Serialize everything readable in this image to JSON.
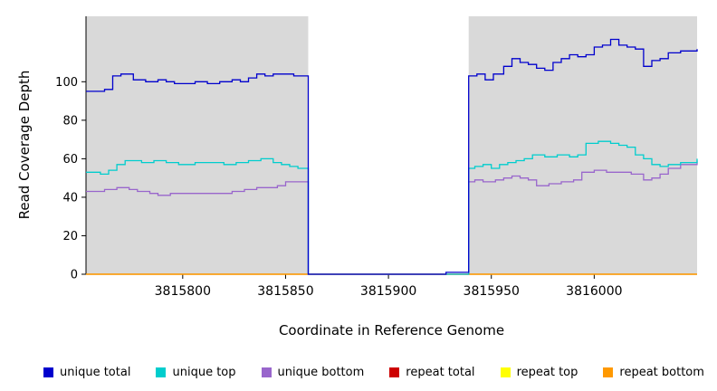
{
  "chart_data": {
    "type": "line",
    "step": true,
    "title": "",
    "xlabel": "Coordinate in Reference Genome",
    "ylabel": "Read Coverage Depth",
    "xlim": [
      3815753,
      3816050
    ],
    "ylim": [
      0,
      134
    ],
    "xticks": [
      3815800,
      3815850,
      3815900,
      3815950,
      3816000
    ],
    "yticks": [
      0,
      20,
      40,
      60,
      80,
      100
    ],
    "grid": false,
    "legend_position": "bottom",
    "panel_bg": "#d9d9d9",
    "gap_region": {
      "start": 3815861,
      "end": 3815939,
      "fill": "#ffffff"
    },
    "series": [
      {
        "key": "repeat-total",
        "name": "repeat total",
        "color": "#cd0000",
        "points": [
          [
            3815753,
            0
          ],
          [
            3816050,
            0
          ]
        ]
      },
      {
        "key": "repeat-top",
        "name": "repeat top",
        "color": "#ffff00",
        "points": [
          [
            3815753,
            0
          ],
          [
            3816050,
            0
          ]
        ]
      },
      {
        "key": "repeat-bottom",
        "name": "repeat bottom",
        "color": "#ff9900",
        "points": [
          [
            3815753,
            0
          ],
          [
            3816050,
            0
          ]
        ]
      },
      {
        "key": "unique-bottom",
        "name": "unique bottom",
        "color": "#9966cc",
        "points": [
          [
            3815753,
            43
          ],
          [
            3815762,
            44
          ],
          [
            3815768,
            45
          ],
          [
            3815774,
            44
          ],
          [
            3815778,
            43
          ],
          [
            3815784,
            42
          ],
          [
            3815788,
            41
          ],
          [
            3815794,
            42
          ],
          [
            3815802,
            42
          ],
          [
            3815810,
            42
          ],
          [
            3815818,
            42
          ],
          [
            3815824,
            43
          ],
          [
            3815830,
            44
          ],
          [
            3815836,
            45
          ],
          [
            3815842,
            45
          ],
          [
            3815846,
            46
          ],
          [
            3815850,
            48
          ],
          [
            3815856,
            48
          ],
          [
            3815861,
            0
          ],
          [
            3815939,
            48
          ],
          [
            3815942,
            49
          ],
          [
            3815946,
            48
          ],
          [
            3815952,
            49
          ],
          [
            3815956,
            50
          ],
          [
            3815960,
            51
          ],
          [
            3815964,
            50
          ],
          [
            3815968,
            49
          ],
          [
            3815972,
            46
          ],
          [
            3815978,
            47
          ],
          [
            3815984,
            48
          ],
          [
            3815990,
            49
          ],
          [
            3815994,
            53
          ],
          [
            3816000,
            54
          ],
          [
            3816006,
            53
          ],
          [
            3816012,
            53
          ],
          [
            3816018,
            52
          ],
          [
            3816024,
            49
          ],
          [
            3816028,
            50
          ],
          [
            3816032,
            52
          ],
          [
            3816036,
            55
          ],
          [
            3816042,
            57
          ],
          [
            3816050,
            59
          ]
        ]
      },
      {
        "key": "unique-top",
        "name": "unique top",
        "color": "#00cdcd",
        "points": [
          [
            3815753,
            53
          ],
          [
            3815760,
            52
          ],
          [
            3815764,
            54
          ],
          [
            3815768,
            57
          ],
          [
            3815772,
            59
          ],
          [
            3815780,
            58
          ],
          [
            3815786,
            59
          ],
          [
            3815792,
            58
          ],
          [
            3815798,
            57
          ],
          [
            3815806,
            58
          ],
          [
            3815814,
            58
          ],
          [
            3815820,
            57
          ],
          [
            3815826,
            58
          ],
          [
            3815832,
            59
          ],
          [
            3815838,
            60
          ],
          [
            3815844,
            58
          ],
          [
            3815848,
            57
          ],
          [
            3815852,
            56
          ],
          [
            3815856,
            55
          ],
          [
            3815861,
            0
          ],
          [
            3815939,
            55
          ],
          [
            3815942,
            56
          ],
          [
            3815946,
            57
          ],
          [
            3815950,
            55
          ],
          [
            3815954,
            57
          ],
          [
            3815958,
            58
          ],
          [
            3815962,
            59
          ],
          [
            3815966,
            60
          ],
          [
            3815970,
            62
          ],
          [
            3815976,
            61
          ],
          [
            3815982,
            62
          ],
          [
            3815988,
            61
          ],
          [
            3815992,
            62
          ],
          [
            3815996,
            68
          ],
          [
            3816002,
            69
          ],
          [
            3816008,
            68
          ],
          [
            3816012,
            67
          ],
          [
            3816016,
            66
          ],
          [
            3816020,
            62
          ],
          [
            3816024,
            60
          ],
          [
            3816028,
            57
          ],
          [
            3816032,
            56
          ],
          [
            3816036,
            57
          ],
          [
            3816042,
            58
          ],
          [
            3816050,
            60
          ]
        ]
      },
      {
        "key": "unique-total",
        "name": "unique total",
        "color": "#0000cd",
        "points": [
          [
            3815753,
            95
          ],
          [
            3815762,
            96
          ],
          [
            3815766,
            103
          ],
          [
            3815770,
            104
          ],
          [
            3815776,
            101
          ],
          [
            3815782,
            100
          ],
          [
            3815788,
            101
          ],
          [
            3815792,
            100
          ],
          [
            3815796,
            99
          ],
          [
            3815806,
            100
          ],
          [
            3815812,
            99
          ],
          [
            3815818,
            100
          ],
          [
            3815824,
            101
          ],
          [
            3815828,
            100
          ],
          [
            3815832,
            102
          ],
          [
            3815836,
            104
          ],
          [
            3815840,
            103
          ],
          [
            3815844,
            104
          ],
          [
            3815850,
            104
          ],
          [
            3815854,
            103
          ],
          [
            3815858,
            103
          ],
          [
            3815861,
            0
          ],
          [
            3815928,
            1
          ],
          [
            3815939,
            103
          ],
          [
            3815943,
            104
          ],
          [
            3815947,
            101
          ],
          [
            3815951,
            104
          ],
          [
            3815956,
            108
          ],
          [
            3815960,
            112
          ],
          [
            3815964,
            110
          ],
          [
            3815968,
            109
          ],
          [
            3815972,
            107
          ],
          [
            3815976,
            106
          ],
          [
            3815980,
            110
          ],
          [
            3815984,
            112
          ],
          [
            3815988,
            114
          ],
          [
            3815992,
            113
          ],
          [
            3815996,
            114
          ],
          [
            3816000,
            118
          ],
          [
            3816004,
            119
          ],
          [
            3816008,
            122
          ],
          [
            3816012,
            119
          ],
          [
            3816016,
            118
          ],
          [
            3816020,
            117
          ],
          [
            3816024,
            108
          ],
          [
            3816028,
            111
          ],
          [
            3816032,
            112
          ],
          [
            3816036,
            115
          ],
          [
            3816042,
            116
          ],
          [
            3816050,
            117
          ]
        ]
      }
    ],
    "legend": [
      {
        "key": "unique-total",
        "label": "unique total",
        "color": "#0000cd"
      },
      {
        "key": "unique-top",
        "label": "unique top",
        "color": "#00cdcd"
      },
      {
        "key": "unique-bottom",
        "label": "unique bottom",
        "color": "#9966cc"
      },
      {
        "key": "repeat-total",
        "label": "repeat total",
        "color": "#cd0000"
      },
      {
        "key": "repeat-top",
        "label": "repeat top",
        "color": "#ffff00"
      },
      {
        "key": "repeat-bottom",
        "label": "repeat bottom",
        "color": "#ff9900"
      }
    ]
  }
}
